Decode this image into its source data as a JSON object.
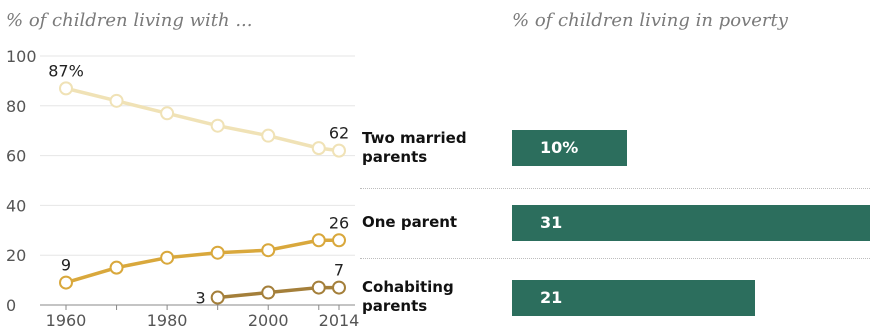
{
  "titles": {
    "left": "% of children living with ...",
    "right": "% of children living in poverty"
  },
  "colors": {
    "two_married": "#f0e2b6",
    "one_parent": "#d9a83c",
    "cohabiting": "#a47f3a",
    "bar": "#2c6e5d",
    "axis_text": "#555555"
  },
  "chart_data": [
    {
      "type": "line",
      "x": [
        1960,
        1970,
        1980,
        1990,
        2000,
        2010,
        2014
      ],
      "xticks": [
        "1960",
        "1980",
        "2000",
        "2014"
      ],
      "yticks": [
        "0",
        "20",
        "40",
        "60",
        "80",
        "100"
      ],
      "ylim": [
        0,
        100
      ],
      "series": [
        {
          "key": "two_married",
          "values": [
            87,
            82,
            77,
            72,
            68,
            63,
            62
          ],
          "labels": [
            {
              "index": 0,
              "text": "87%"
            },
            {
              "index": 6,
              "text": "62"
            }
          ]
        },
        {
          "key": "one_parent",
          "values": [
            9,
            15,
            19,
            21,
            22,
            26,
            26
          ],
          "labels": [
            {
              "index": 0,
              "text": "9"
            },
            {
              "index": 6,
              "text": "26"
            }
          ]
        },
        {
          "key": "cohabiting",
          "x": [
            1990,
            2000,
            2010,
            2014
          ],
          "values": [
            3,
            5,
            7,
            7
          ],
          "labels": [
            {
              "index": 0,
              "text": "3"
            },
            {
              "index": 3,
              "text": "7"
            }
          ]
        }
      ]
    },
    {
      "type": "bar",
      "orientation": "horizontal",
      "categories": [
        "Two married parents",
        "One parent",
        "Cohabiting parents"
      ],
      "values": [
        10,
        31,
        21
      ],
      "value_labels": [
        "10%",
        "31",
        "21"
      ]
    }
  ]
}
